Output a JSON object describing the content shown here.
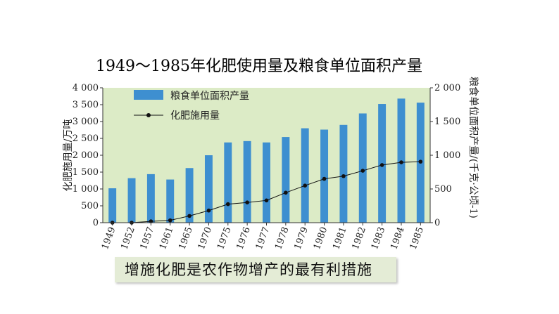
{
  "chart_data": {
    "type": "bar+line",
    "title": "1949～1985年化肥使用量及粮食单位面积产量",
    "categories": [
      "1949",
      "1952",
      "1957",
      "1961",
      "1965",
      "1970",
      "1975",
      "1976",
      "1977",
      "1978",
      "1979",
      "1980",
      "1981",
      "1982",
      "1983",
      "1984",
      "1985"
    ],
    "series": [
      {
        "name": "粮食单位面积产量",
        "type": "bar",
        "axis": "right",
        "values": [
          510,
          660,
          720,
          640,
          810,
          1000,
          1190,
          1210,
          1190,
          1270,
          1400,
          1380,
          1450,
          1620,
          1760,
          1840,
          1780
        ]
      },
      {
        "name": "化肥施用量",
        "type": "line",
        "axis": "left",
        "values": [
          0,
          0,
          40,
          70,
          200,
          360,
          550,
          600,
          660,
          890,
          1100,
          1300,
          1380,
          1540,
          1710,
          1790,
          1810
        ]
      }
    ],
    "ylabel_left": "化肥施用量/万吨",
    "ylabel_right": "粮食单位面积产量/(千克·公顷-1)",
    "ylim_left": [
      0,
      4000
    ],
    "ylim_right": [
      0,
      2000
    ],
    "yticks_left": [
      "0",
      "500",
      "1 000",
      "1 500",
      "2 000",
      "2 500",
      "3 000",
      "3 500",
      "4 000"
    ],
    "yticks_right": [
      "0",
      "500",
      "1 000",
      "1 500",
      "2 000"
    ],
    "legend_position": "top-left",
    "bar_color": "#3e8fd0",
    "line_color": "#111111",
    "plot_background": "#dcebc6"
  },
  "caption": "增施化肥是农作物增产的最有利措施"
}
